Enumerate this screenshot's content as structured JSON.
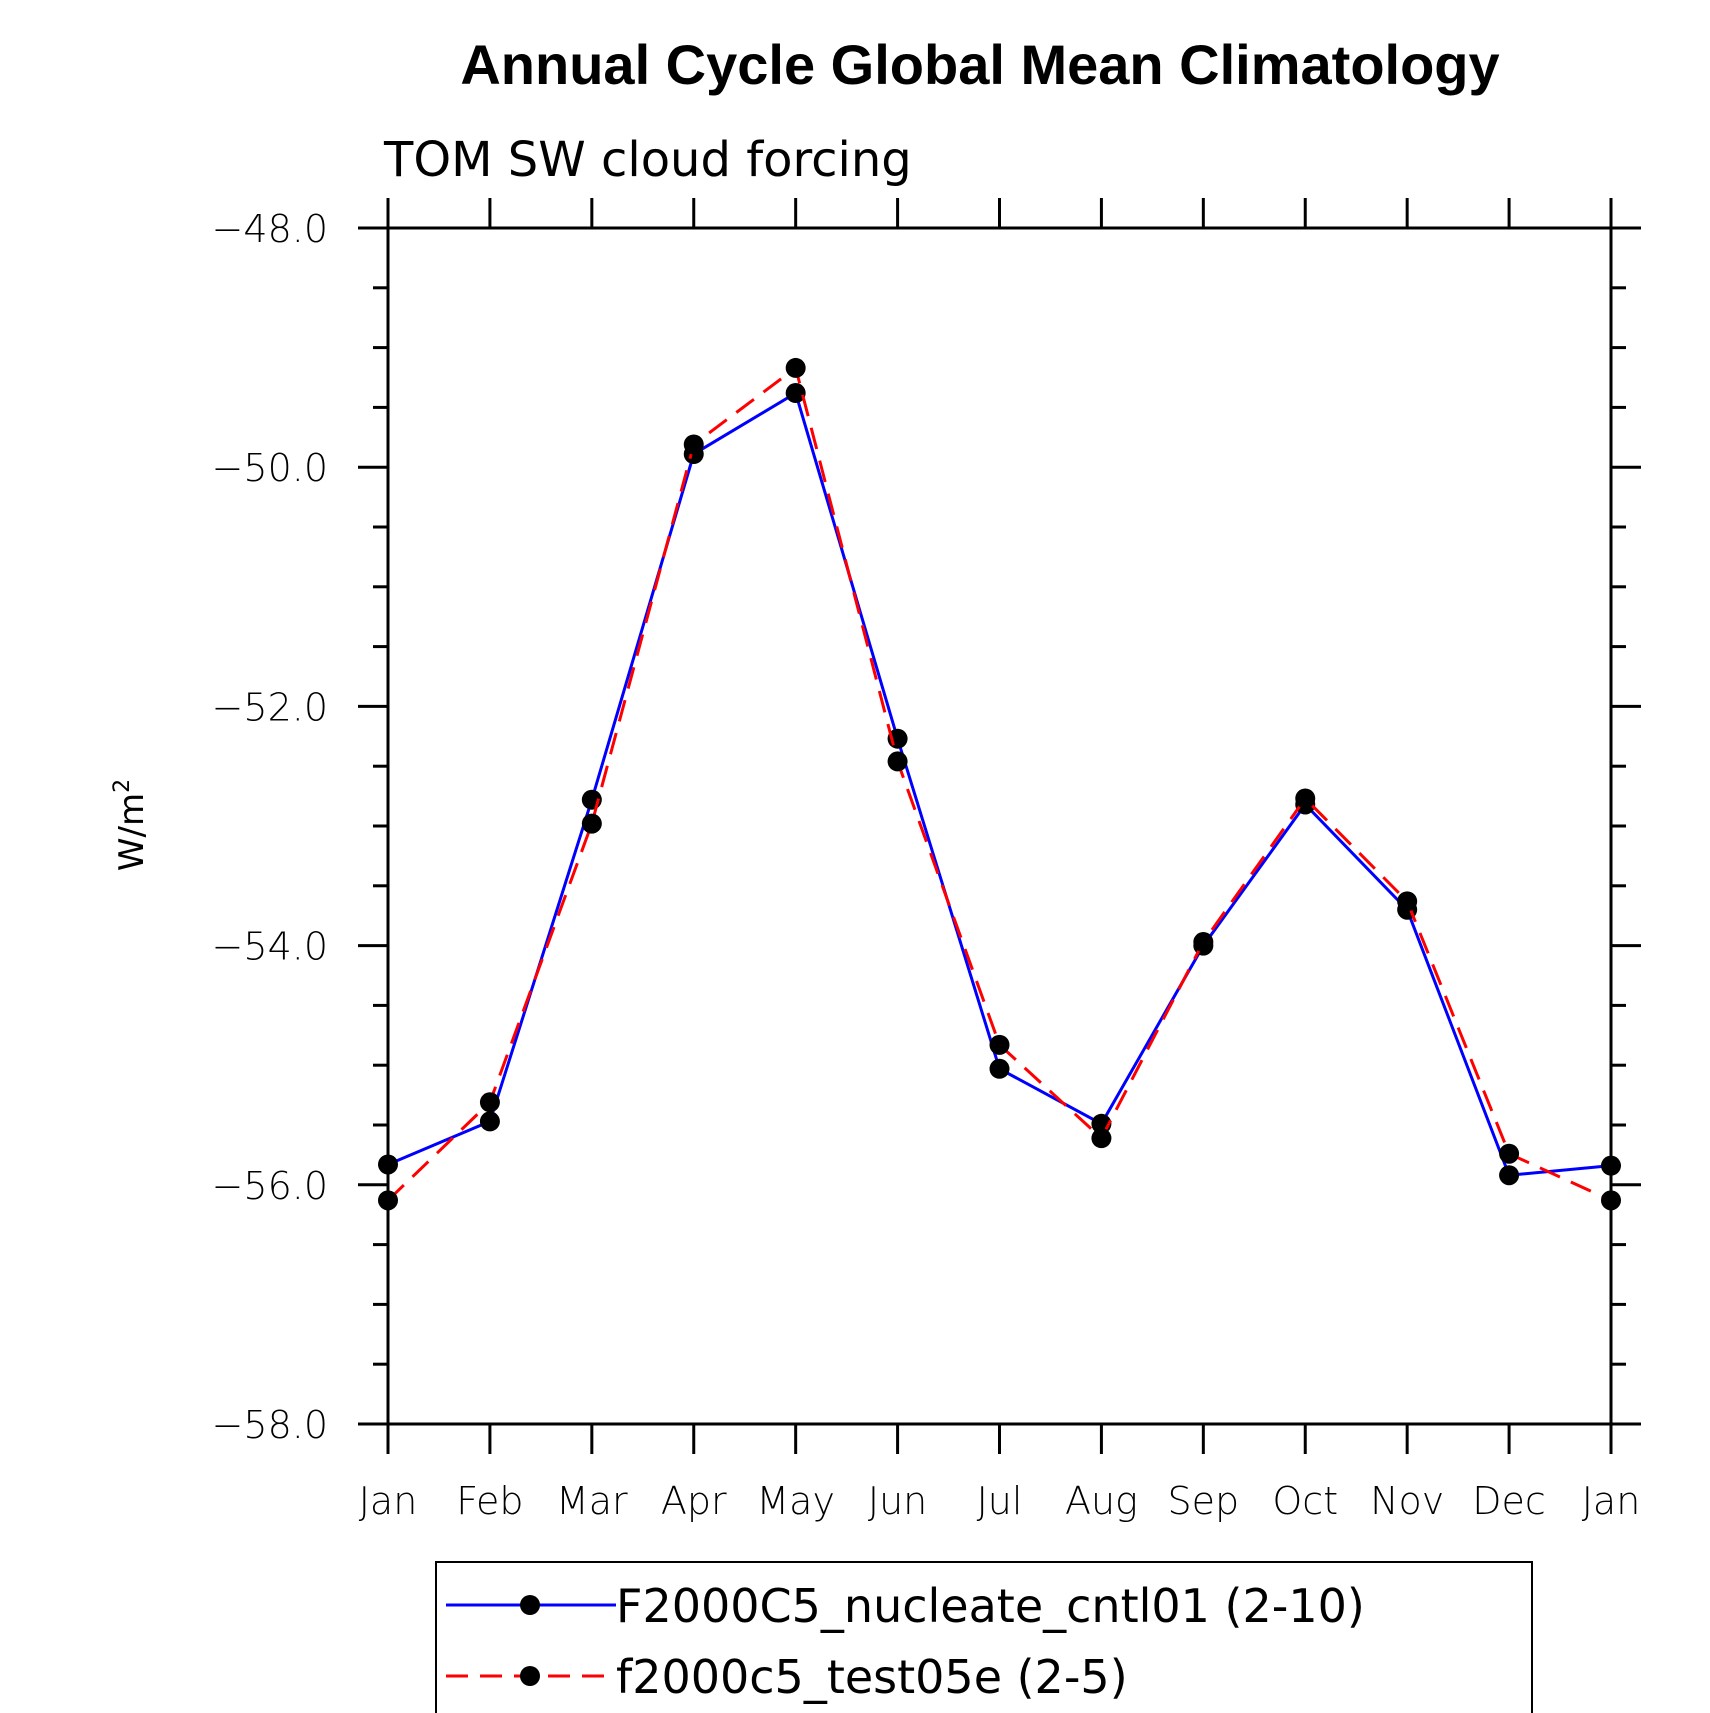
{
  "chart_data": {
    "type": "line",
    "title": "Annual Cycle Global Mean Climatology",
    "subtitle": "TOM SW cloud forcing",
    "ylabel_base": "W/m",
    "ylabel_sup": "2",
    "xlabel": "",
    "categories": [
      "Jan",
      "Feb",
      "Mar",
      "Apr",
      "May",
      "Jun",
      "Jul",
      "Aug",
      "Sep",
      "Oct",
      "Nov",
      "Dec",
      "Jan"
    ],
    "ylim": [
      -58.0,
      -48.0
    ],
    "yticks": [
      "-48.0",
      "-50.0",
      "-52.0",
      "-54.0",
      "-56.0",
      "-58.0"
    ],
    "series": [
      {
        "name": "F2000C5_nucleate_cntl01 (2-10)",
        "color": "#0000ff",
        "style": "solid",
        "values": [
          -55.83,
          -55.47,
          -52.78,
          -49.89,
          -49.38,
          -52.27,
          -55.03,
          -55.49,
          -54.0,
          -52.82,
          -53.7,
          -55.92,
          -55.84
        ]
      },
      {
        "name": "f2000c5_test05e (2-5)",
        "color": "#ff0000",
        "style": "dashed",
        "values": [
          -56.13,
          -55.31,
          -52.98,
          -49.81,
          -49.17,
          -52.46,
          -54.83,
          -55.61,
          -53.97,
          -52.77,
          -53.63,
          -55.74,
          -56.13
        ]
      }
    ],
    "legend_position": "bottom"
  }
}
